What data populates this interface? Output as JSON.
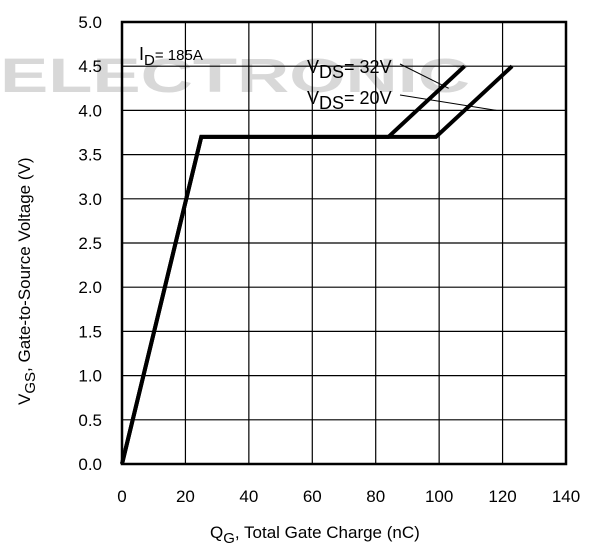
{
  "watermark": "ELECTRONIC",
  "chart_data": {
    "type": "line",
    "xlabel": {
      "main": "Q",
      "sub": "G",
      "rest": ",  Total Gate Charge (nC)"
    },
    "ylabel": {
      "main": "V",
      "sub": "GS",
      "rest": ", Gate-to-Source Voltage (V)"
    },
    "xlim": [
      0,
      140
    ],
    "ylim": [
      0,
      5
    ],
    "x_ticks": [
      0,
      20,
      40,
      60,
      80,
      100,
      120,
      140
    ],
    "y_ticks": [
      0.0,
      0.5,
      1.0,
      1.5,
      2.0,
      2.5,
      3.0,
      3.5,
      4.0,
      4.5,
      5.0
    ],
    "x_tick_labels": [
      "0",
      "20",
      "40",
      "60",
      "80",
      "100",
      "120",
      "140"
    ],
    "y_tick_labels": [
      "0.0",
      "0.5",
      "1.0",
      "1.5",
      "2.0",
      "2.5",
      "3.0",
      "3.5",
      "4.0",
      "4.5",
      "5.0"
    ],
    "grid": true,
    "series": [
      {
        "name": "VDS= 32V",
        "x": [
          0,
          25,
          84,
          108
        ],
        "y": [
          0,
          3.7,
          3.7,
          4.5
        ]
      },
      {
        "name": "VDS= 20V",
        "x": [
          0,
          25,
          99,
          123
        ],
        "y": [
          0,
          3.7,
          3.7,
          4.5
        ]
      }
    ],
    "annotations": {
      "id": {
        "main": "I",
        "sub": "D",
        "rest": "= 185A"
      },
      "vds32": {
        "main": "V",
        "sub": "DS",
        "rest": "= 32V"
      },
      "vds20": {
        "main": "V",
        "sub": "DS",
        "rest": "= 20V"
      }
    }
  }
}
